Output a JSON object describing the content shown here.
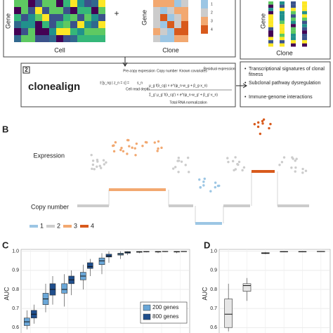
{
  "panel_a": {
    "heatmap_y": "Gene",
    "heatmap_x": "Cell",
    "plus": "+",
    "clone_y": "Gene",
    "clone_x": "Clone",
    "clone_legend": [
      "1",
      "2",
      "3",
      "4"
    ],
    "out_y": "Gene",
    "out_x": "Clone"
  },
  "step2": {
    "number": "2",
    "name": "clonealign",
    "formula_lhs": "𝔼[y_ng | z_n = c] =",
    "depth_symbol": "s_n",
    "numerator": "μ_g f(λ_cg) × e^(ψ_n·w_g + β_g·x_n)",
    "denominator": "Σ_g' μ_g' f(λ_cg') × e^(ψ_n·w_g' + β_g'·x_n)",
    "pre_copy": "Pre-copy expression",
    "copy_number": "Copy number",
    "covariates": "Known covariates",
    "residual": "Residual expression",
    "read_depth": "Cell read depth",
    "normalization": "Total RNA normalization"
  },
  "outputs": [
    "Transcriptional signatures of clonal fitness",
    "Subclonal pathway dysregulation",
    "Immune-genome interactions"
  ],
  "panel_b": {
    "label": "B",
    "expression": "Expression",
    "copy_number": "Copy number",
    "legend": [
      {
        "name": "1",
        "color": "#9cc6e4"
      },
      {
        "name": "2",
        "color": "#cccccc"
      },
      {
        "name": "3",
        "color": "#f2a870"
      },
      {
        "name": "4",
        "color": "#d85a1c"
      }
    ]
  },
  "chart_data": [
    {
      "type": "box",
      "panel": "C",
      "ylabel": "AUC",
      "ylim": [
        0.575,
        1.01
      ],
      "yticks": [
        0.6,
        0.7,
        0.8,
        0.9,
        {
          "value": 1.0,
          "label": "1.0"
        }
      ],
      "grid": true,
      "legend": "bottom-right",
      "categories": [
        null,
        null,
        null,
        null,
        null,
        null,
        null,
        null,
        null
      ],
      "series": [
        {
          "name": "200 genes",
          "color": "#6aa7d8",
          "low": [
            0.59,
            0.68,
            0.71,
            0.8,
            0.88,
            0.96,
            0.99,
            0.99,
            0.99
          ],
          "q1": [
            0.61,
            0.72,
            0.78,
            0.85,
            0.93,
            0.98,
            0.995,
            0.996,
            0.996
          ],
          "median": [
            0.63,
            0.75,
            0.8,
            0.87,
            0.95,
            0.985,
            0.997,
            0.998,
            0.998
          ],
          "q3": [
            0.65,
            0.78,
            0.83,
            0.89,
            0.965,
            0.99,
            0.999,
            0.999,
            0.999
          ],
          "high": [
            0.69,
            0.83,
            0.88,
            0.93,
            0.99,
            1.0,
            1.0,
            1.0,
            1.0
          ]
        },
        {
          "name": "800 genes",
          "color": "#1f4e8c",
          "low": [
            0.62,
            0.72,
            0.77,
            0.87,
            0.94,
            0.98,
            0.995,
            0.996,
            0.997
          ],
          "q1": [
            0.65,
            0.77,
            0.83,
            0.91,
            0.97,
            0.99,
            0.997,
            0.998,
            0.998
          ],
          "median": [
            0.67,
            0.8,
            0.85,
            0.92,
            0.975,
            0.995,
            0.998,
            0.999,
            0.999
          ],
          "q3": [
            0.69,
            0.83,
            0.87,
            0.94,
            0.985,
            0.998,
            0.999,
            1.0,
            1.0
          ],
          "high": [
            0.72,
            0.87,
            0.9,
            0.96,
            1.0,
            1.0,
            1.0,
            1.0,
            1.0
          ]
        }
      ]
    },
    {
      "type": "box",
      "panel": "D",
      "ylabel": "AUC",
      "ylim": [
        0.575,
        1.01
      ],
      "yticks": [
        0.6,
        0.7,
        0.8,
        0.9,
        {
          "value": 1.0,
          "label": "1.0"
        }
      ],
      "grid": true,
      "categories": [
        null,
        null,
        null,
        null,
        null,
        null
      ],
      "series": [
        {
          "color": "#e6e6e6",
          "low": [
            0.58,
            0.74,
            0.985,
            0.996,
            0.996,
            0.997
          ],
          "q1": [
            0.6,
            0.79,
            0.988,
            0.997,
            0.997,
            0.998
          ],
          "median": [
            0.67,
            0.82,
            0.99,
            0.998,
            0.998,
            0.999
          ],
          "q3": [
            0.75,
            0.83,
            0.993,
            0.999,
            0.999,
            1.0
          ],
          "high": [
            0.83,
            0.86,
            0.996,
            1.0,
            1.0,
            1.0
          ]
        }
      ]
    }
  ]
}
